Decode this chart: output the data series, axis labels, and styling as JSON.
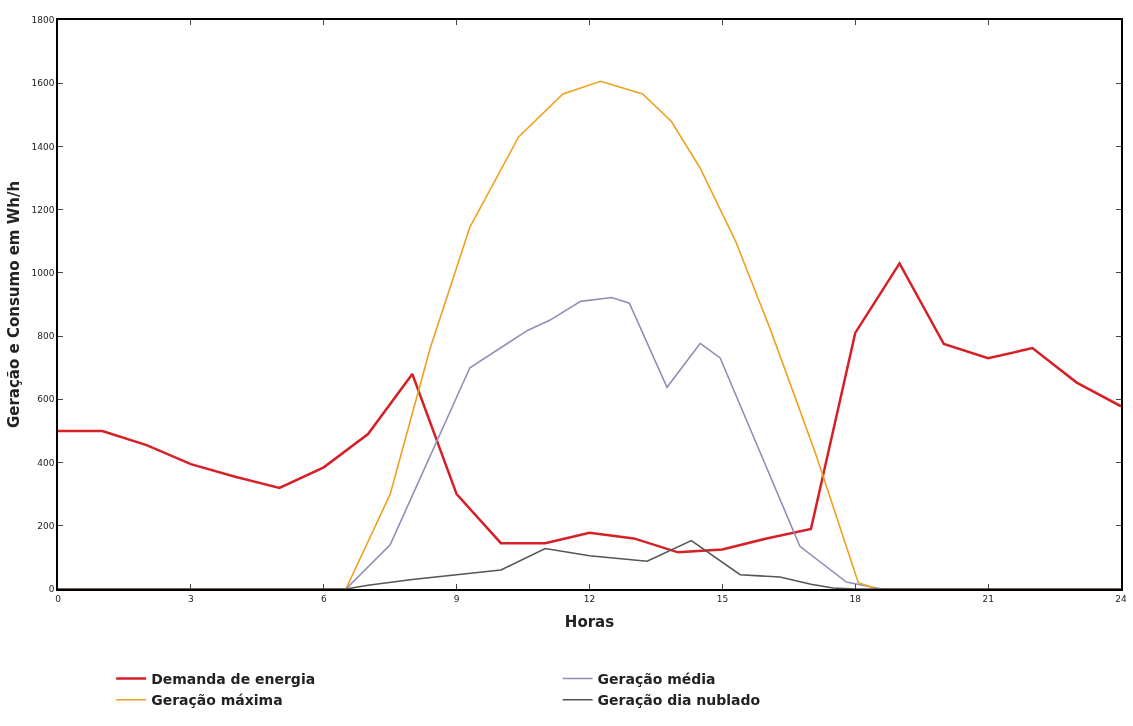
{
  "chart_data": {
    "type": "line",
    "xlabel": "Horas",
    "ylabel": "Geração e Consumo em Wh/h",
    "xlim": [
      0,
      24
    ],
    "xticks": [
      0,
      3,
      6,
      9,
      12,
      15,
      18,
      21,
      24
    ],
    "ylim": [
      0,
      1800
    ],
    "yticks": [
      0,
      200,
      400,
      600,
      800,
      1000,
      1200,
      1400,
      1600,
      1800
    ],
    "grid": false,
    "legend": "bottom",
    "marker": "none",
    "line_style": "solid",
    "series": [
      {
        "name": "Demanda de energia",
        "color": "#d62028",
        "x": [
          0,
          1,
          2,
          3,
          4,
          5,
          6,
          7,
          8,
          9,
          10,
          11,
          12,
          13,
          14,
          15,
          16,
          17,
          18,
          19,
          20,
          21,
          22,
          23,
          24
        ],
        "values": [
          500,
          500,
          455,
          395,
          355,
          320,
          385,
          490,
          680,
          300,
          145,
          145,
          178,
          160,
          116,
          125,
          160,
          190,
          810,
          1030,
          775,
          730,
          762,
          653,
          578
        ]
      },
      {
        "name": "Geração média",
        "color": "#8f8fb8",
        "x": [
          0,
          6.5,
          7.5,
          9.3,
          10.6,
          11.1,
          11.8,
          12.5,
          12.9,
          13.75,
          14.5,
          14.95,
          16.75,
          17.8,
          18.6,
          24
        ],
        "values": [
          0,
          0,
          140,
          700,
          818,
          850,
          910,
          922,
          904,
          638,
          777,
          731,
          135,
          22,
          0,
          0
        ]
      },
      {
        "name": "Geração máxima",
        "color": "#f0a020",
        "x": [
          0,
          6.5,
          7.5,
          8.4,
          9.3,
          10.4,
          11.4,
          12.25,
          13.2,
          13.85,
          14.5,
          15.3,
          16.1,
          17.1,
          18.07,
          18.5,
          24
        ],
        "values": [
          0,
          0,
          300,
          760,
          1145,
          1430,
          1566,
          1606,
          1566,
          1479,
          1331,
          1100,
          815,
          430,
          20,
          0,
          0
        ]
      },
      {
        "name": "Geração dia nublado",
        "color": "#555555",
        "x": [
          0,
          6.5,
          7,
          8,
          9,
          10,
          11,
          12,
          13.3,
          14.3,
          15.4,
          16.3,
          17,
          17.5,
          18,
          24
        ],
        "values": [
          0,
          0,
          12,
          30,
          45,
          60,
          128,
          105,
          88,
          153,
          45,
          38,
          15,
          3,
          0,
          0
        ]
      }
    ]
  }
}
